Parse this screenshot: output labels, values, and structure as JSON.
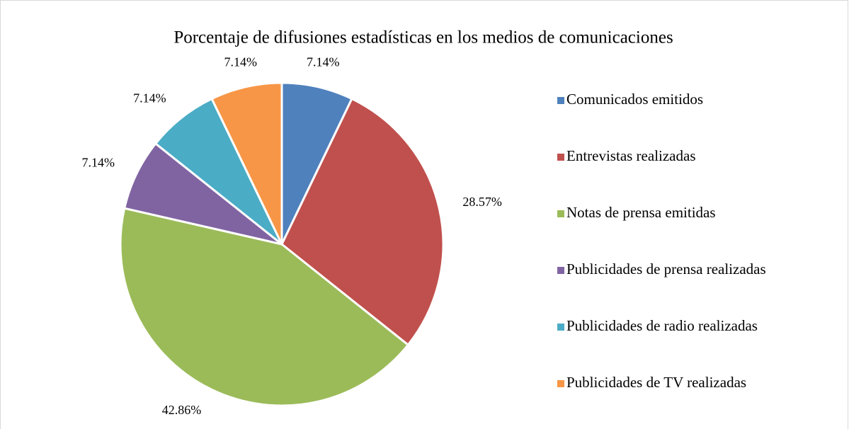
{
  "chart_data": {
    "type": "pie",
    "title": "Porcentaje de difusiones estadísticas en los medios de comunicaciones",
    "categories": [
      "Comunicados emitidos",
      "Entrevistas realizadas",
      "Notas de prensa emitidas",
      "Publicidades de prensa realizadas",
      "Publicidades de radio realizadas",
      "Publicidades de TV realizadas"
    ],
    "values": [
      7.14,
      28.57,
      42.86,
      7.14,
      7.14,
      7.14
    ],
    "value_labels": [
      "7.14%",
      "28.57%",
      "42.86%",
      "7.14%",
      "7.14%",
      "7.14%"
    ],
    "colors": [
      "#4f81bd",
      "#c0504d",
      "#9bbb59",
      "#8064a2",
      "#4bacc6",
      "#f79646"
    ],
    "legend": "right"
  }
}
